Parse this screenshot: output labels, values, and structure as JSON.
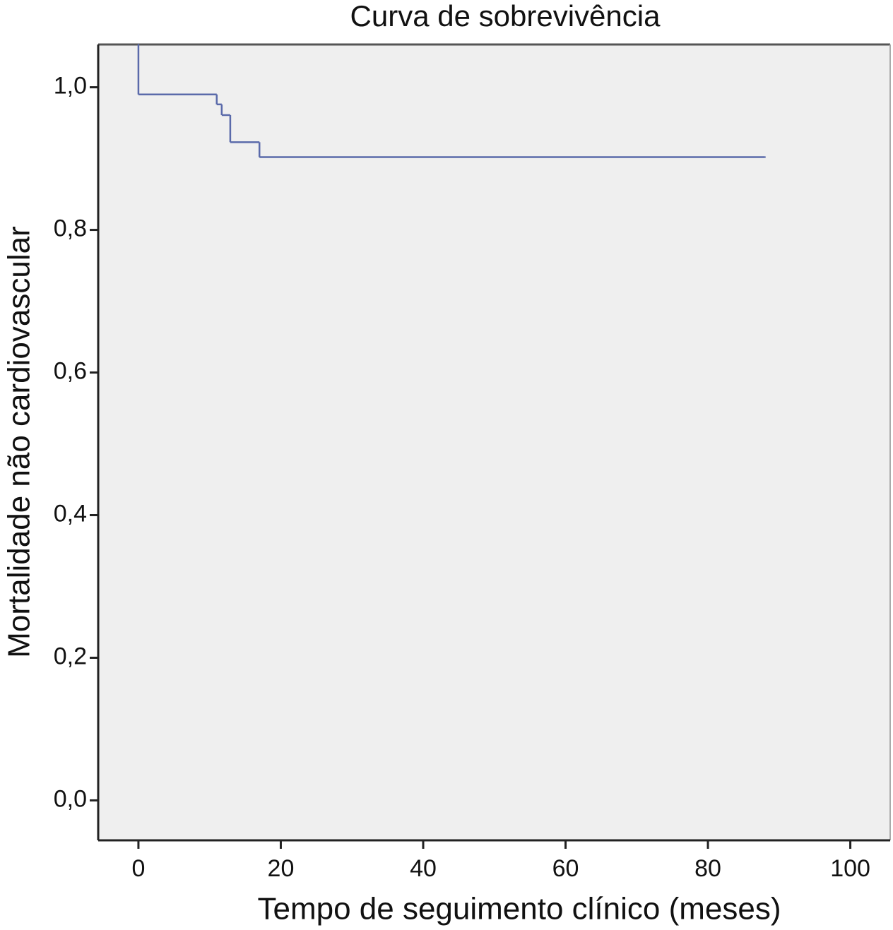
{
  "chart_data": {
    "type": "step",
    "title": "Curva de sobrevivência",
    "x_label": "Tempo de seguimento clínico (meses)",
    "y_label": "Mortalidade não cardiovascular",
    "x": [
      0,
      0,
      11,
      11.7,
      12.9,
      17,
      88
    ],
    "values": [
      1.06,
      0.99,
      0.976,
      0.961,
      0.923,
      0.902,
      0.902
    ],
    "color": "#5a6aaa",
    "background": "#efefef",
    "xlim": [
      -5.65,
      105.6
    ],
    "ylim": [
      -0.056,
      1.06
    ],
    "xticks": [
      0,
      20,
      40,
      60,
      80,
      100
    ],
    "yticks": [
      {
        "value": 0,
        "label": "0,0"
      },
      {
        "value": 0.2,
        "label": "0,2"
      },
      {
        "value": 0.4,
        "label": "0,4"
      },
      {
        "value": 0.6,
        "label": "0,6"
      },
      {
        "value": 0.8,
        "label": "0,8"
      },
      {
        "value": 1,
        "label": "1,0"
      }
    ]
  }
}
